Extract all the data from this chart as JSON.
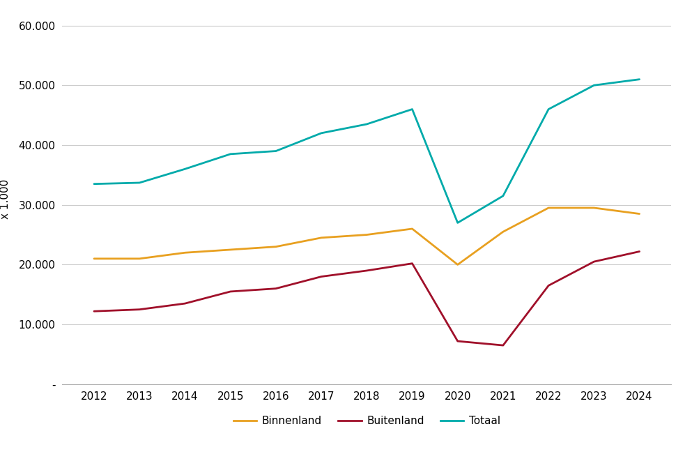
{
  "years": [
    2012,
    2013,
    2014,
    2015,
    2016,
    2017,
    2018,
    2019,
    2020,
    2021,
    2022,
    2023,
    2024
  ],
  "binnenland": [
    21000,
    21000,
    22000,
    22500,
    23000,
    24500,
    25000,
    26000,
    20000,
    25500,
    29500,
    29500,
    28500
  ],
  "buitenland": [
    12200,
    12500,
    13500,
    15500,
    16000,
    18000,
    19000,
    20200,
    7200,
    6500,
    16500,
    20500,
    22200
  ],
  "totaal": [
    33500,
    33700,
    36000,
    38500,
    39000,
    42000,
    43500,
    46000,
    27000,
    31500,
    46000,
    50000,
    51000
  ],
  "color_binnenland": "#E8A020",
  "color_buitenland": "#A0102A",
  "color_totaal": "#00AAAA",
  "ylabel": "x 1.000",
  "ylim": [
    0,
    62000
  ],
  "yticks": [
    0,
    10000,
    20000,
    30000,
    40000,
    50000,
    60000
  ],
  "ytick_labels": [
    "-",
    "10.000",
    "20.000",
    "30.000",
    "40.000",
    "50.000",
    "60.000"
  ],
  "background_color": "#ffffff",
  "legend_labels": [
    "Binnenland",
    "Buitenland",
    "Totaal"
  ],
  "grid_color": "#cccccc",
  "line_width": 2.0
}
